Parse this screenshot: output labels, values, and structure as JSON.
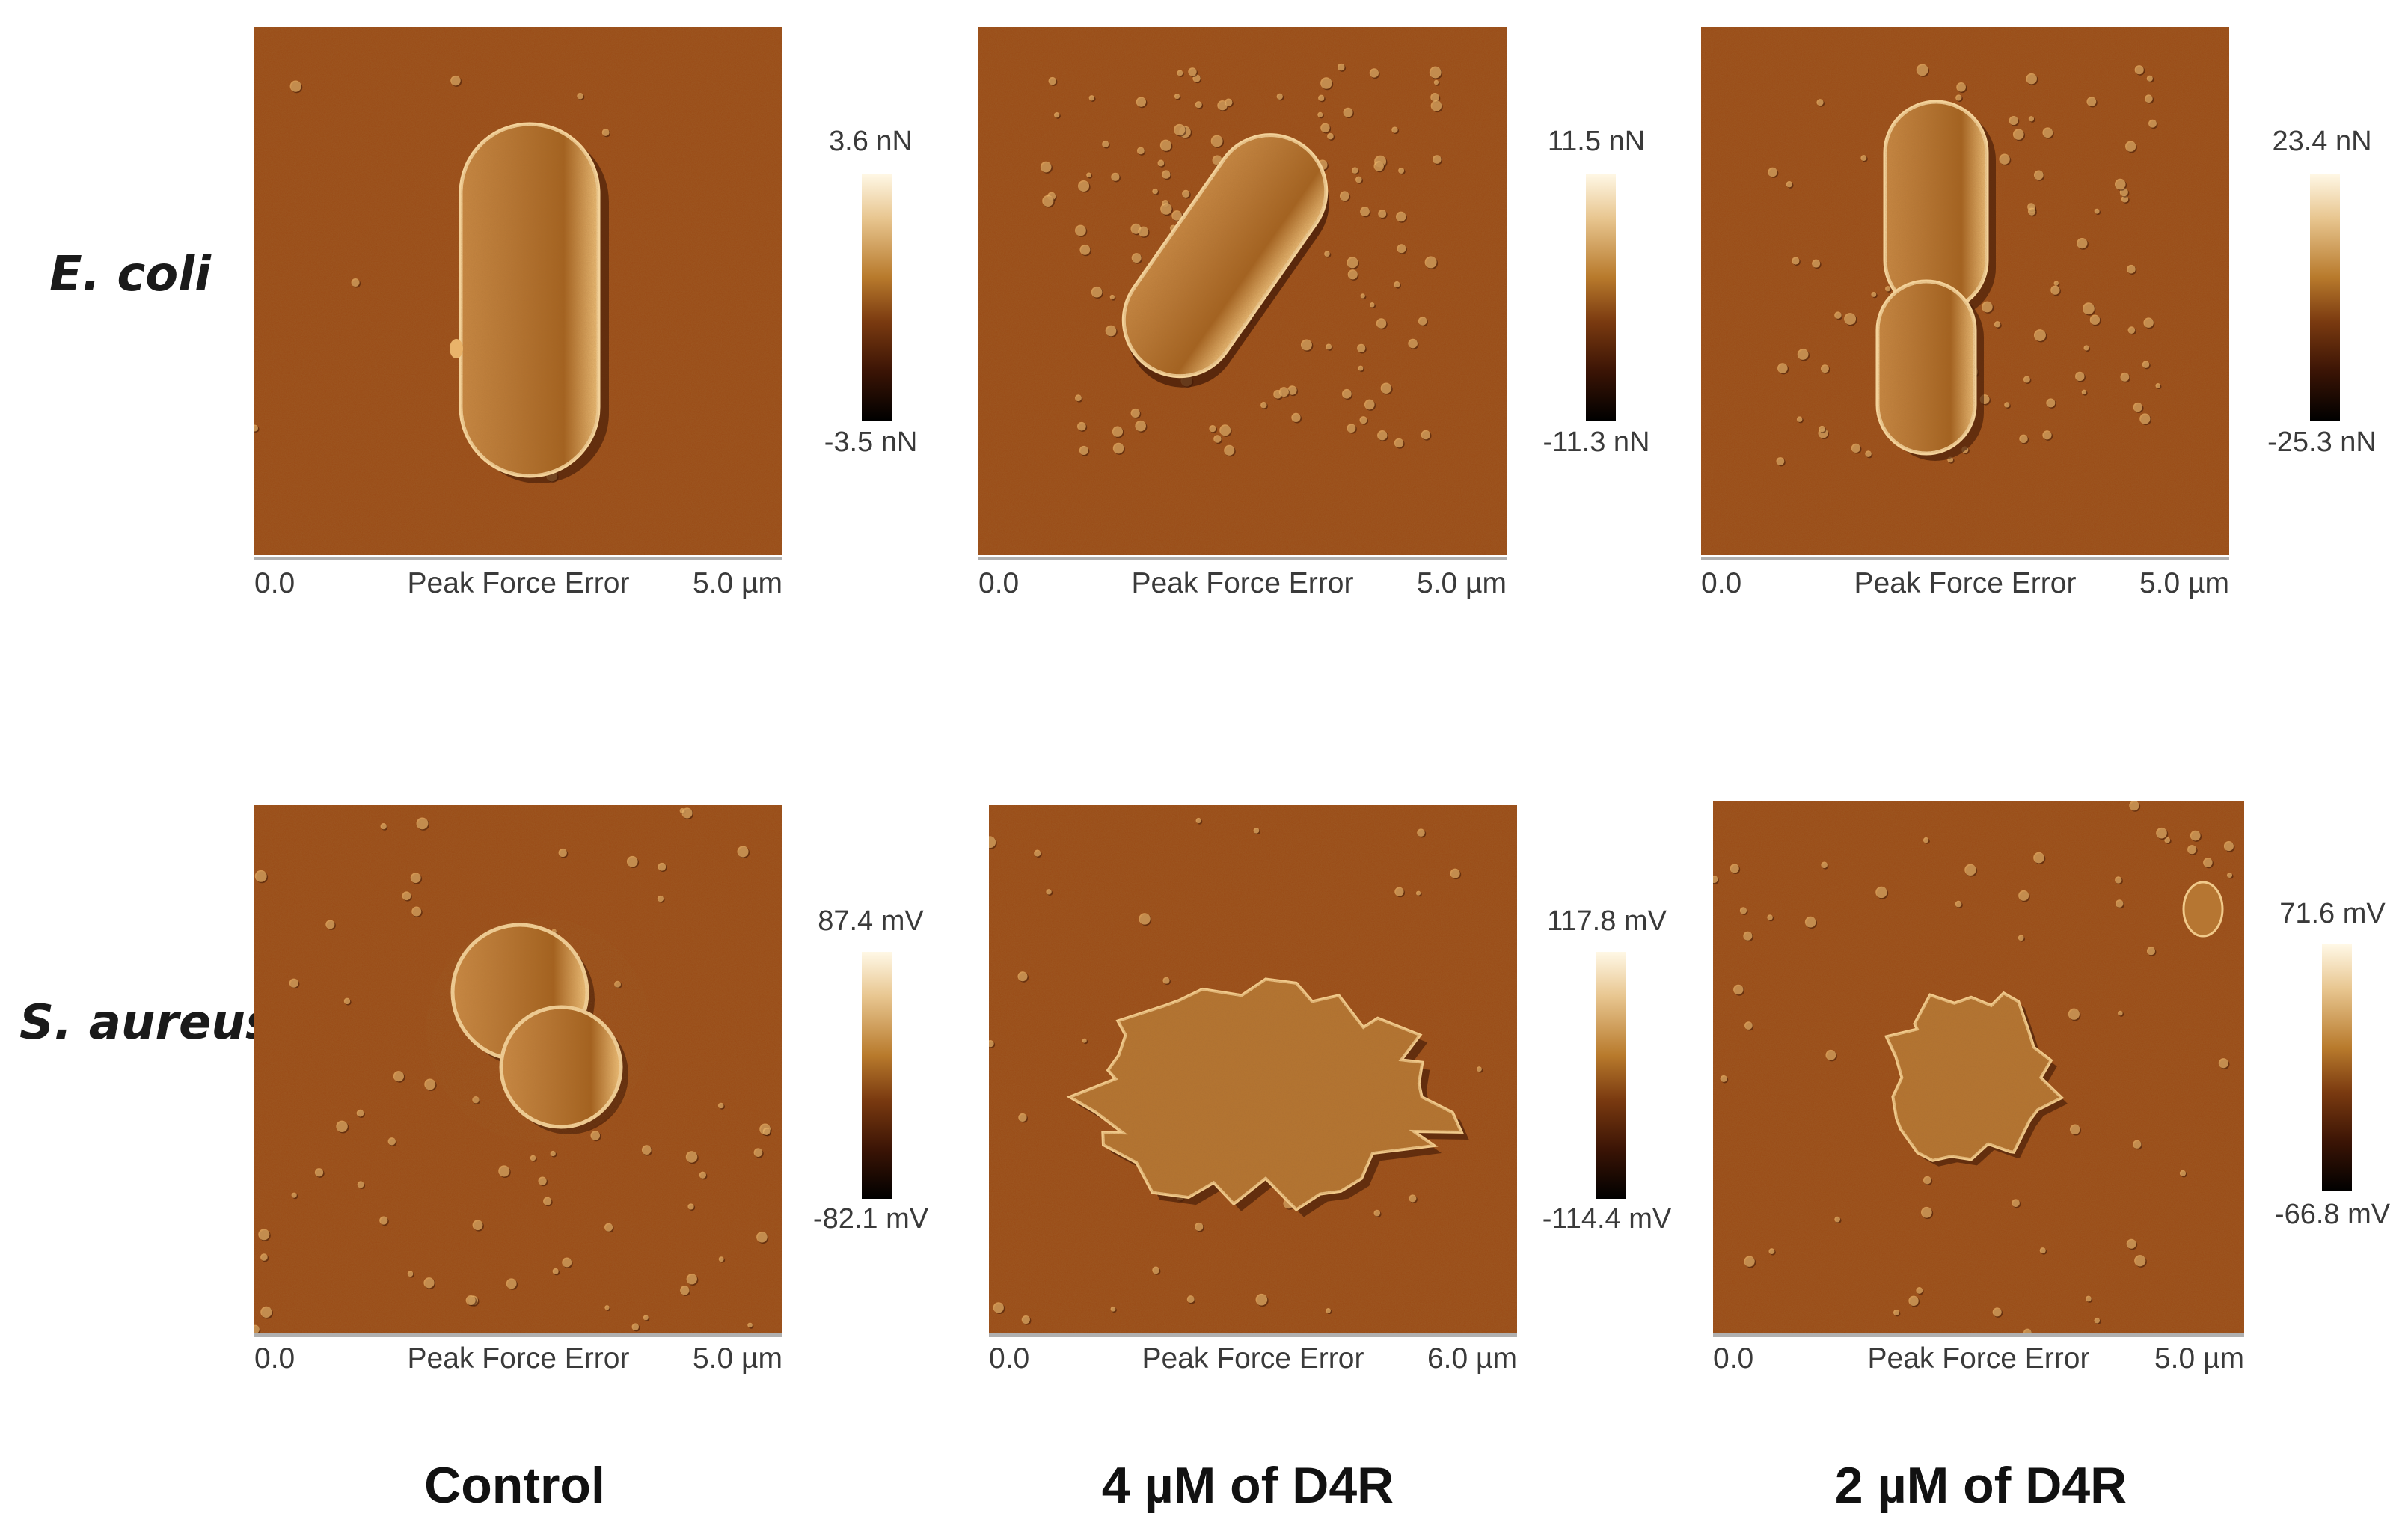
{
  "row_labels": [
    "E. coli",
    "S. aureus"
  ],
  "column_labels": [
    "Control",
    "4 µM of D4R",
    "2 µM of D4R"
  ],
  "panels": [
    {
      "id": "ecoli-control",
      "subject": "rod",
      "colorbar_max": "3.6 nN",
      "colorbar_min": "-3.5 nN",
      "axis_start": "0.0",
      "axis_title": "Peak Force Error",
      "axis_end": "5.0 µm"
    },
    {
      "id": "ecoli-4um",
      "subject": "rod-damaged",
      "colorbar_max": "11.5 nN",
      "colorbar_min": "-11.3 nN",
      "axis_start": "0.0",
      "axis_title": "Peak Force Error",
      "axis_end": "5.0 µm"
    },
    {
      "id": "ecoli-2um",
      "subject": "rod-dividing",
      "colorbar_max": "23.4 nN",
      "colorbar_min": "-25.3 nN",
      "axis_start": "0.0",
      "axis_title": "Peak Force Error",
      "axis_end": "5.0 µm"
    },
    {
      "id": "saureus-control",
      "subject": "cocci-pair",
      "colorbar_max": "87.4 mV",
      "colorbar_min": "-82.1 mV",
      "axis_start": "0.0",
      "axis_title": "Peak Force Error",
      "axis_end": "5.0 µm"
    },
    {
      "id": "saureus-4um",
      "subject": "debris-large",
      "colorbar_max": "117.8 mV",
      "colorbar_min": "-114.4 mV",
      "axis_start": "0.0",
      "axis_title": "Peak Force Error",
      "axis_end": "6.0 µm"
    },
    {
      "id": "saureus-2um",
      "subject": "debris-small",
      "colorbar_max": "71.6 mV",
      "colorbar_min": "-66.8 mV",
      "axis_start": "0.0",
      "axis_title": "Peak Force Error",
      "axis_end": "5.0 µm"
    }
  ],
  "colors": {
    "substrate": "#9a4a16",
    "substrate_dark": "#7f3a0e",
    "highlight": "#e9b36a",
    "shadow": "#3e1705"
  }
}
